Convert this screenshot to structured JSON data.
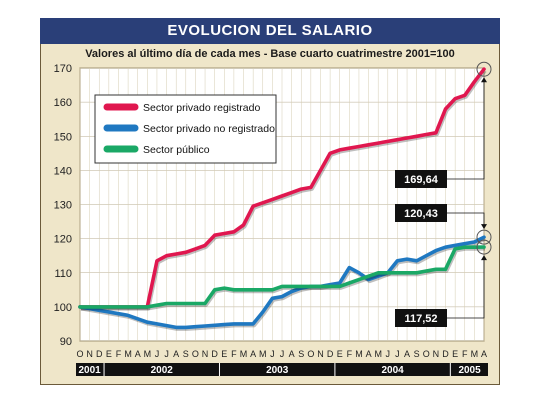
{
  "chart_data": {
    "type": "line",
    "title": "EVOLUCION DEL SALARIO",
    "subtitle": "Valores al último día de cada mes - Base cuarto cuatrimestre 2001=100",
    "ylim": [
      90,
      170
    ],
    "yticks": [
      90,
      100,
      110,
      120,
      130,
      140,
      150,
      160,
      170
    ],
    "grid": true,
    "legend_position": "top-left",
    "x_month_letters": [
      "O",
      "N",
      "D",
      "E",
      "F",
      "M",
      "A",
      "M",
      "J",
      "J",
      "A",
      "S",
      "O",
      "N",
      "D",
      "E",
      "F",
      "M",
      "A",
      "M",
      "J",
      "J",
      "A",
      "S",
      "O",
      "N",
      "D",
      "E",
      "F",
      "M",
      "A",
      "M",
      "J",
      "J",
      "A",
      "S",
      "O",
      "N",
      "D",
      "E",
      "F",
      "M",
      "A"
    ],
    "x": [
      "2001-10",
      "2001-11",
      "2001-12",
      "2002-01",
      "2002-02",
      "2002-03",
      "2002-04",
      "2002-05",
      "2002-06",
      "2002-07",
      "2002-08",
      "2002-09",
      "2002-10",
      "2002-11",
      "2002-12",
      "2003-01",
      "2003-02",
      "2003-03",
      "2003-04",
      "2003-05",
      "2003-06",
      "2003-07",
      "2003-08",
      "2003-09",
      "2003-10",
      "2003-11",
      "2003-12",
      "2004-01",
      "2004-02",
      "2004-03",
      "2004-04",
      "2004-05",
      "2004-06",
      "2004-07",
      "2004-08",
      "2004-09",
      "2004-10",
      "2004-11",
      "2004-12",
      "2005-01",
      "2005-02",
      "2005-03",
      "2005-04"
    ],
    "years": [
      {
        "label": "2001",
        "start": 0,
        "end": 2
      },
      {
        "label": "2002",
        "start": 3,
        "end": 14
      },
      {
        "label": "2003",
        "start": 15,
        "end": 26
      },
      {
        "label": "2004",
        "start": 27,
        "end": 38
      },
      {
        "label": "2005",
        "start": 39,
        "end": 42
      }
    ],
    "series": [
      {
        "name": "Sector privado registrado",
        "color": "#e0174f",
        "values": [
          100,
          100,
          100,
          100,
          100,
          100,
          100,
          100,
          113.5,
          115,
          115.5,
          116,
          117,
          118,
          121,
          121.5,
          122,
          124,
          129.5,
          130.5,
          131.5,
          132.5,
          133.5,
          134.5,
          135,
          140,
          145,
          146,
          146.5,
          147,
          147.5,
          148,
          148.5,
          149,
          149.5,
          150,
          150.5,
          151,
          158,
          161,
          162,
          166,
          169.64
        ]
      },
      {
        "name": "Sector privado no registrado",
        "color": "#1f78c1",
        "values": [
          100,
          99.5,
          99,
          98.5,
          98,
          97.5,
          96.5,
          95.5,
          95,
          94.5,
          94,
          94,
          94.2,
          94.4,
          94.6,
          94.8,
          95,
          95,
          95,
          98.5,
          102.5,
          103,
          104.5,
          105.5,
          106,
          106,
          106.5,
          107,
          111.5,
          110,
          108,
          109,
          110,
          113.5,
          114,
          113.5,
          115,
          116.5,
          117.5,
          118,
          118.5,
          119,
          120.43
        ]
      },
      {
        "name": "Sector público",
        "color": "#1aa866",
        "values": [
          100,
          100,
          100,
          100,
          100,
          100,
          100,
          100,
          100.5,
          101,
          101,
          101,
          101,
          101,
          105,
          105.5,
          105,
          105,
          105,
          105,
          105,
          106,
          106,
          106,
          106,
          106,
          106,
          106,
          107,
          108,
          109,
          110,
          110,
          110,
          110,
          110,
          110.5,
          111,
          111,
          117,
          117.5,
          117.5,
          117.52
        ]
      }
    ],
    "annotations": [
      "169,64",
      "120,43",
      "117,52"
    ]
  }
}
